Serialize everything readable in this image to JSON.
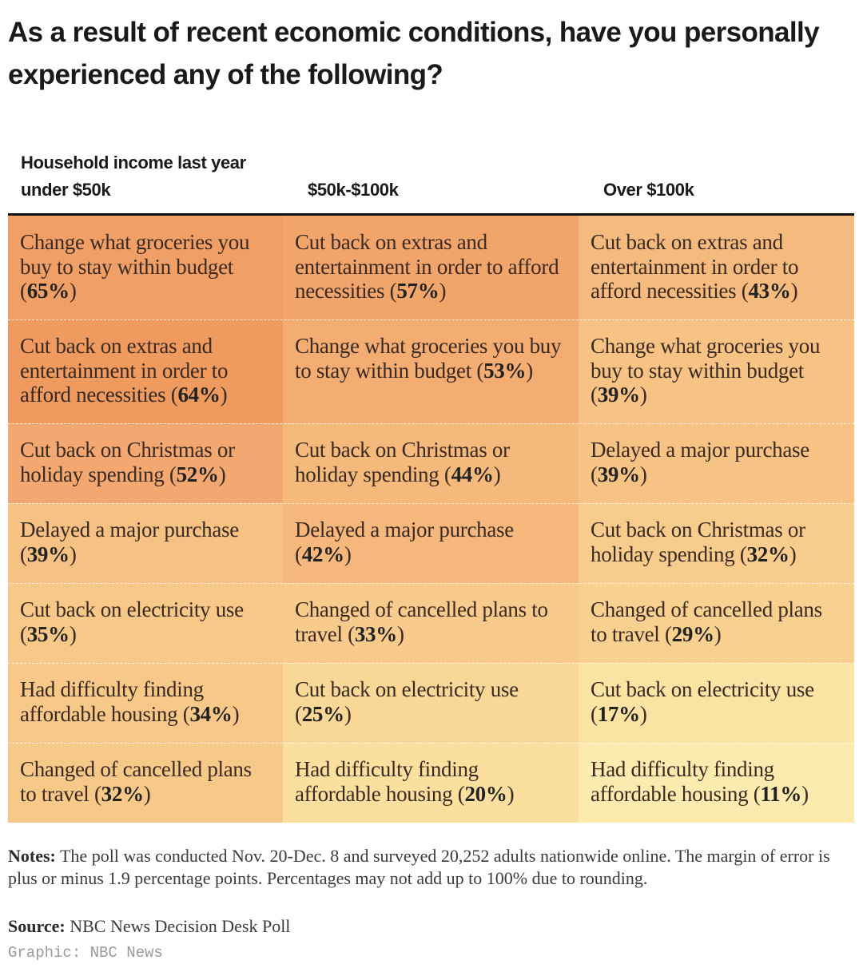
{
  "title": "As a result of recent economic conditions, have you personally experienced any of the following?",
  "chart_data": {
    "type": "table",
    "group_label": "Household income last year",
    "columns": [
      {
        "header": "under $50k",
        "items": [
          {
            "text": "Change what groceries you buy to stay within budget",
            "pct": "65%",
            "value": 65,
            "color": "#F0A066"
          },
          {
            "text": "Cut back on extras and entertainment in order to afford necessities",
            "pct": "64%",
            "value": 64,
            "color": "#EF9A5F"
          },
          {
            "text": "Cut back on Christmas or holiday spending",
            "pct": "52%",
            "value": 52,
            "color": "#F2A870"
          },
          {
            "text": "Delayed a major purchase",
            "pct": "39%",
            "value": 39,
            "color": "#F6C283"
          },
          {
            "text": "Cut back on electricity use",
            "pct": "35%",
            "value": 35,
            "color": "#F7C887"
          },
          {
            "text": "Had difficulty finding affordable housing",
            "pct": "34%",
            "value": 34,
            "color": "#F7C887"
          },
          {
            "text": "Changed of cancelled plans to travel",
            "pct": "32%",
            "value": 32,
            "color": "#F7C989"
          }
        ]
      },
      {
        "header": "$50k-$100k",
        "items": [
          {
            "text": "Cut back on extras and entertainment in order to afford necessities",
            "pct": "57%",
            "value": 57,
            "color": "#F2A56B"
          },
          {
            "text": "Change what groceries you buy to stay within budget",
            "pct": "53%",
            "value": 53,
            "color": "#F3AC72"
          },
          {
            "text": "Cut back on Christmas or holiday spending",
            "pct": "44%",
            "value": 44,
            "color": "#F5B97C"
          },
          {
            "text": "Delayed a major purchase",
            "pct": "42%",
            "value": 42,
            "color": "#F5B77B"
          },
          {
            "text": "Changed of cancelled plans to travel",
            "pct": "33%",
            "value": 33,
            "color": "#F8CB8C"
          },
          {
            "text": "Cut back on electricity use",
            "pct": "25%",
            "value": 25,
            "color": "#F9D796"
          },
          {
            "text": "Had difficulty finding affordable housing",
            "pct": "20%",
            "value": 20,
            "color": "#FADF9E"
          }
        ]
      },
      {
        "header": "Over $100k",
        "items": [
          {
            "text": "Cut back on extras and entertainment in order to afford necessities",
            "pct": "43%",
            "value": 43,
            "color": "#F5BA7D"
          },
          {
            "text": "Change what groceries you buy to stay within budget",
            "pct": "39%",
            "value": 39,
            "color": "#F7C385"
          },
          {
            "text": "Delayed a major purchase",
            "pct": "39%",
            "value": 39,
            "color": "#F7C385"
          },
          {
            "text": "Cut back on Christmas or holiday spending",
            "pct": "32%",
            "value": 32,
            "color": "#F8CC8D"
          },
          {
            "text": "Changed of cancelled plans to travel",
            "pct": "29%",
            "value": 29,
            "color": "#F8D190"
          },
          {
            "text": "Cut back on electricity use",
            "pct": "17%",
            "value": 17,
            "color": "#FBE3A4"
          },
          {
            "text": "Had difficulty finding affordable housing",
            "pct": "11%",
            "value": 11,
            "color": "#FCEAAE"
          }
        ]
      }
    ]
  },
  "notes": {
    "label": "Notes:",
    "text": "The poll was conducted Nov. 20-Dec. 8 and surveyed 20,252 adults nationwide online. The margin of error is plus or minus 1.9 percentage points. Percentages may not add up to 100% due to rounding."
  },
  "source": {
    "label": "Source:",
    "text": "NBC News Decision Desk Poll"
  },
  "credit": "Graphic: NBC News"
}
